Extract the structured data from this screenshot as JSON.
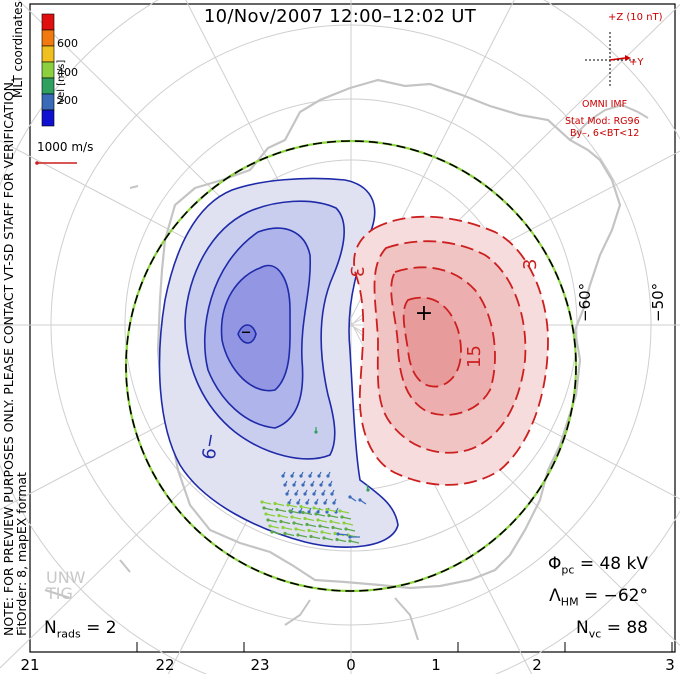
{
  "title": "10/Nov/2007  12:00–12:02 UT",
  "coord_label": "MLT coordinates",
  "colorbar": {
    "label": "Vel [m/s]",
    "ticks": [
      "600",
      "400",
      "200"
    ],
    "colors": [
      "#e01010",
      "#f07a10",
      "#f0c020",
      "#8cd040",
      "#30a060",
      "#3a6ab8",
      "#1010d0"
    ]
  },
  "scale": {
    "label": "1000 m/s"
  },
  "imf": {
    "z_label": "+Z (10 nT)",
    "y_label": "+Y",
    "source": "OMNI IMF",
    "stat_mod": "Stat Mod: RG96",
    "condition": "By–, 6<BT<12"
  },
  "lat_labels": [
    "−60°",
    "−50°"
  ],
  "contour_labels": [
    "−9",
    "3",
    "3",
    "15"
  ],
  "extrema": {
    "min": "–",
    "max": "+"
  },
  "mlt_labels": [
    "21",
    "22",
    "23",
    "0",
    "1",
    "2",
    "3"
  ],
  "notes": {
    "preview": "NOTE: FOR PREVIEW PURPOSES ONLY. PLEASE CONTACT VT-SD STAFF FOR VERIFICATION.",
    "fit": "FitOrder: 8, mapEX format"
  },
  "watermark": [
    "UNW",
    "TIG"
  ],
  "stats": {
    "phi_symbol": "Φ",
    "phi_sub": "pc",
    "phi_value": "= 48 kV",
    "lambda_symbol": "Λ",
    "lambda_sub": "HM",
    "lambda_value": "= −62°",
    "nvc_symbol": "N",
    "nvc_sub": "vc",
    "nvc_value": "= 88",
    "nrads_symbol": "N",
    "nrads_sub": "rads",
    "nrads_value": "= 2"
  }
}
